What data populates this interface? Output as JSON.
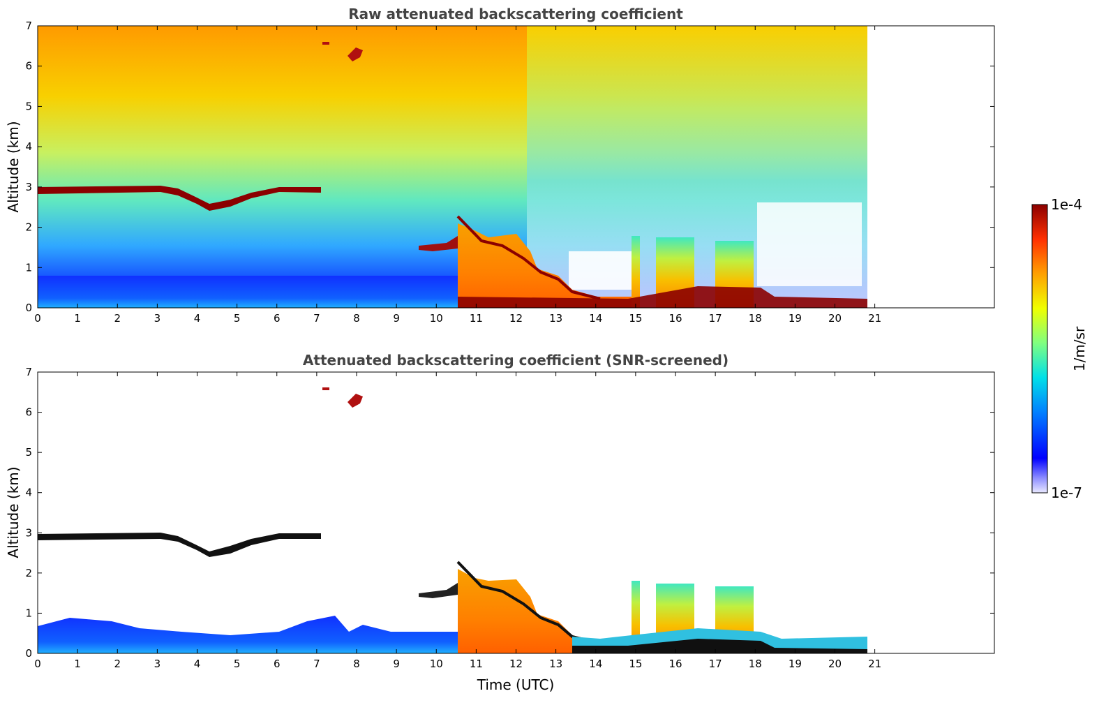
{
  "chart_data": [
    {
      "type": "heatmap",
      "title": "Raw attenuated backscattering coefficient",
      "xlabel": "",
      "ylabel": "Altitude (km)",
      "xlim": [
        0,
        24
      ],
      "ylim": [
        0,
        7
      ],
      "xticks": [
        "0",
        "1",
        "2",
        "3",
        "4",
        "5",
        "6",
        "7",
        "8",
        "9",
        "10",
        "11",
        "12",
        "13",
        "14",
        "15",
        "16",
        "17",
        "18",
        "19",
        "20",
        "21"
      ],
      "yticks": [
        "0",
        "1",
        "2",
        "3",
        "4",
        "5",
        "6",
        "7"
      ],
      "data_end_hour": 20.8,
      "color_scale": "log",
      "features": [
        {
          "name": "cloud layer",
          "x": [
            0,
            7.1
          ],
          "altitude_km": 2.9
        },
        {
          "name": "dip",
          "x": [
            4.0,
            4.8
          ],
          "altitude_km": 2.5
        },
        {
          "name": "high cloud",
          "x": [
            7.7,
            8.1
          ],
          "altitude_km": 6.3
        },
        {
          "name": "boundary layer aerosol",
          "x": [
            10.5,
            12.4
          ],
          "altitude_km": [
            0,
            1.8
          ]
        },
        {
          "name": "convective plumes",
          "x": [
            15.5,
            18.0
          ],
          "altitude_km": [
            0,
            1.7
          ]
        }
      ]
    },
    {
      "type": "heatmap",
      "title": "Attenuated backscattering coefficient (SNR-screened)",
      "xlabel": "Time (UTC)",
      "ylabel": "Altitude (km)",
      "xlim": [
        0,
        24
      ],
      "ylim": [
        0,
        7
      ],
      "xticks": [
        "0",
        "1",
        "2",
        "3",
        "4",
        "5",
        "6",
        "7",
        "8",
        "9",
        "10",
        "11",
        "12",
        "13",
        "14",
        "15",
        "16",
        "17",
        "18",
        "19",
        "20",
        "21"
      ],
      "yticks": [
        "0",
        "1",
        "2",
        "3",
        "4",
        "5",
        "6",
        "7"
      ],
      "data_end_hour": 20.8,
      "color_scale": "log"
    }
  ],
  "colorbar": {
    "label": "1/m/sr",
    "max_label": "1e-4",
    "min_label": "1e-7",
    "colors": [
      "#e9e9ff",
      "#0000ff",
      "#00a0ff",
      "#00e8e0",
      "#80ff80",
      "#f0ff00",
      "#ffa000",
      "#ff3000",
      "#8b0000"
    ]
  }
}
